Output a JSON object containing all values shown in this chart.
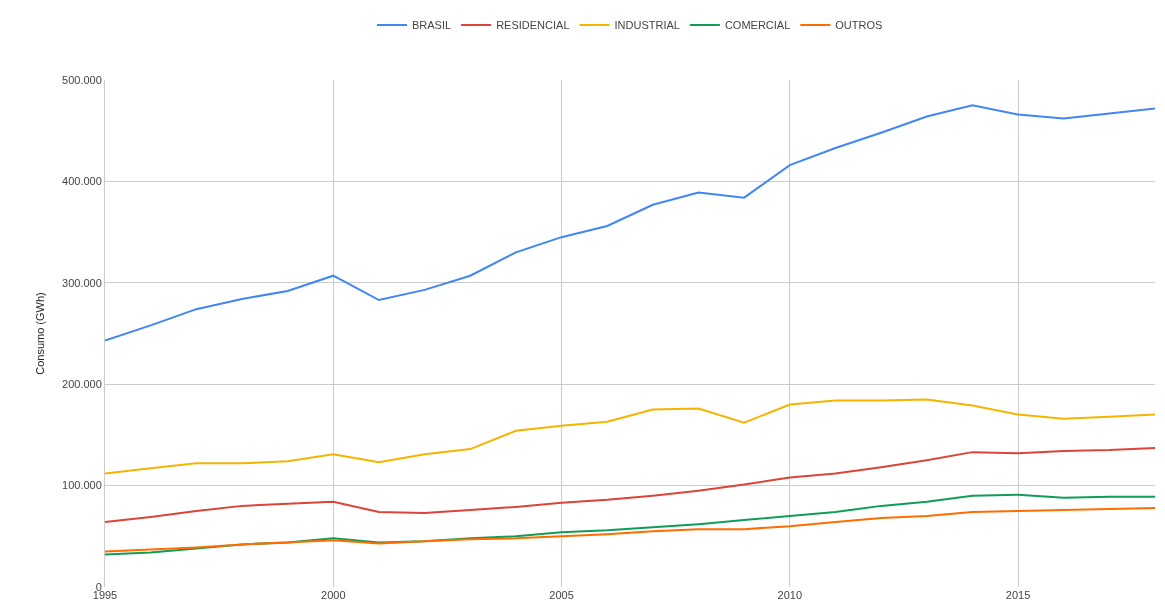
{
  "chart_data": {
    "type": "line",
    "ylabel": "Consumo (GWh)",
    "x": [
      1995,
      1996,
      1997,
      1998,
      1999,
      2000,
      2001,
      2002,
      2003,
      2004,
      2005,
      2006,
      2007,
      2008,
      2009,
      2010,
      2011,
      2012,
      2013,
      2014,
      2015,
      2016,
      2017,
      2018
    ],
    "series": [
      {
        "name": "BRASIL",
        "color": "#4285f4",
        "values": [
          243000,
          258000,
          274000,
          284000,
          292000,
          307000,
          283000,
          293000,
          307000,
          330000,
          345000,
          356000,
          377000,
          389000,
          384000,
          416000,
          433000,
          448000,
          464000,
          475000,
          466000,
          462000,
          467000,
          472000
        ]
      },
      {
        "name": "RESIDENCIAL",
        "color": "#db4437",
        "values": [
          64000,
          69000,
          75000,
          80000,
          82000,
          84000,
          74000,
          73000,
          76000,
          79000,
          83000,
          86000,
          90000,
          95000,
          101000,
          108000,
          112000,
          118000,
          125000,
          133000,
          132000,
          134000,
          135000,
          137000
        ]
      },
      {
        "name": "INDUSTRIAL",
        "color": "#f4b400",
        "values": [
          112000,
          117000,
          122000,
          122000,
          124000,
          131000,
          123000,
          131000,
          136000,
          154000,
          159000,
          163000,
          175000,
          176000,
          162000,
          180000,
          184000,
          184000,
          185000,
          179000,
          170000,
          166000,
          168000,
          170000
        ]
      },
      {
        "name": "COMERCIAL",
        "color": "#0f9d58",
        "values": [
          32000,
          34000,
          38000,
          42000,
          44000,
          48000,
          44000,
          45000,
          48000,
          50000,
          54000,
          56000,
          59000,
          62000,
          66000,
          70000,
          74000,
          80000,
          84000,
          90000,
          91000,
          88000,
          89000,
          89000
        ]
      },
      {
        "name": "OUTROS",
        "color": "#ff6d01",
        "values": [
          35000,
          37000,
          39000,
          42000,
          44000,
          46000,
          43000,
          45000,
          47000,
          48000,
          50000,
          52000,
          55000,
          57000,
          57000,
          60000,
          64000,
          68000,
          70000,
          74000,
          75000,
          76000,
          77000,
          78000
        ]
      }
    ],
    "xlim": [
      1995,
      2018
    ],
    "xticks": [
      1995,
      2000,
      2005,
      2010,
      2015
    ],
    "ylim": [
      0,
      500000
    ],
    "yticks": [
      0,
      {
        "value": 100000,
        "label": "100.000"
      },
      {
        "value": 200000,
        "label": "200.000"
      },
      {
        "value": 300000,
        "label": "300.000"
      },
      {
        "value": 400000,
        "label": "400.000"
      },
      {
        "value": 500000,
        "label": "500.000"
      }
    ],
    "grid": true,
    "legend": "top",
    "marker": "none",
    "line_style": "solid"
  }
}
